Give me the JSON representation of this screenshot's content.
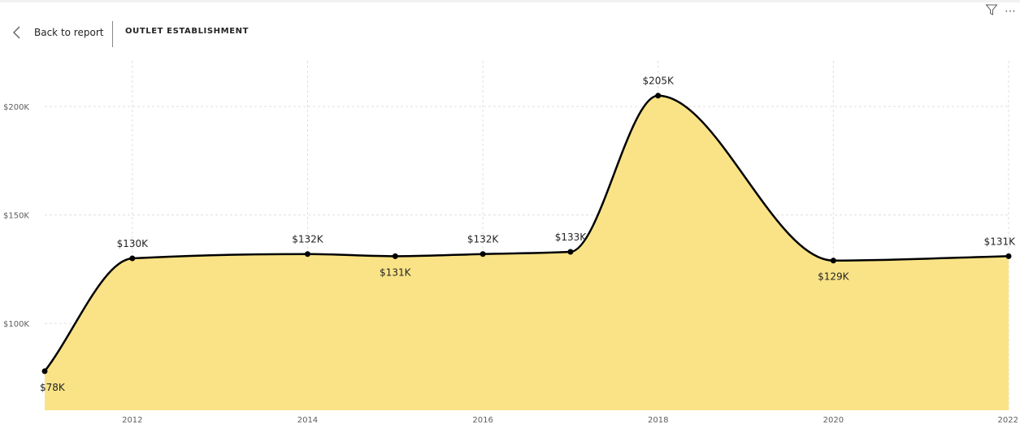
{
  "header": {
    "back_label": "Back to report",
    "title": "OUTLET ESTABLISHMENT"
  },
  "icons": {
    "back": "chevron-left-icon",
    "filter": "filter-icon",
    "more": "more-options-icon"
  },
  "colors": {
    "area_fill": "#F9E386",
    "line": "#000000",
    "gridline": "#e1dfdd"
  },
  "chart_data": {
    "type": "area",
    "title": "",
    "xlabel": "",
    "ylabel": "",
    "x": [
      2011,
      2012,
      2014,
      2015,
      2016,
      2017,
      2018,
      2020,
      2022
    ],
    "values": [
      78,
      130,
      132,
      131,
      132,
      133,
      205,
      129,
      131
    ],
    "data_labels": [
      "$78K",
      "$130K",
      "$132K",
      "$131K",
      "$132K",
      "$133K",
      "$205K",
      "$129K",
      "$131K"
    ],
    "label_positions": [
      "below",
      "above",
      "above",
      "below",
      "above",
      "above",
      "above",
      "below",
      "above"
    ],
    "x_ticks": [
      2012,
      2014,
      2016,
      2018,
      2020,
      2022
    ],
    "x_tick_labels": [
      "2012",
      "2014",
      "2016",
      "2018",
      "2020",
      "2022"
    ],
    "y_ticks": [
      100,
      150,
      200
    ],
    "y_tick_labels": [
      "$100K",
      "$150K",
      "$200K"
    ],
    "xlim": [
      2011,
      2022
    ],
    "ylim": [
      60,
      221
    ],
    "grid": true,
    "legend": "none"
  }
}
